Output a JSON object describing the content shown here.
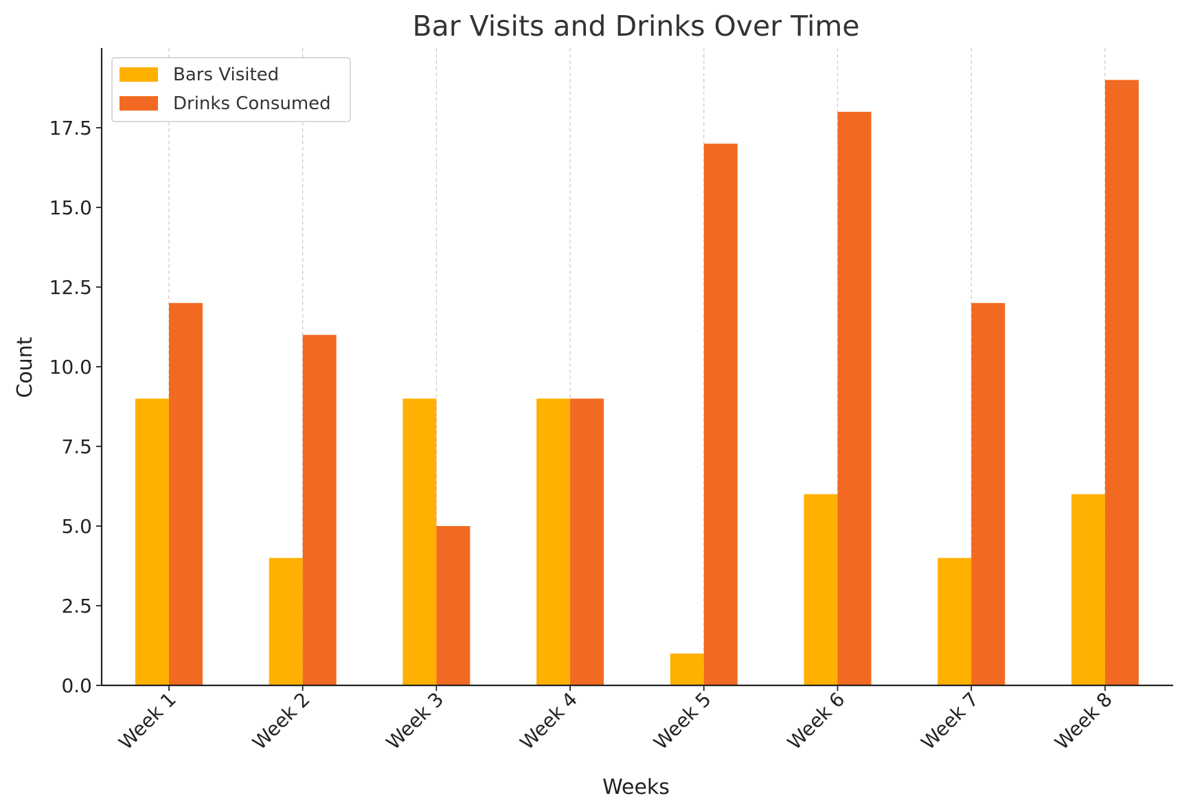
{
  "chart_data": {
    "type": "bar",
    "title": "Bar Visits and Drinks Over Time",
    "xlabel": "Weeks",
    "ylabel": "Count",
    "categories": [
      "Week 1",
      "Week 2",
      "Week 3",
      "Week 4",
      "Week 5",
      "Week 6",
      "Week 7",
      "Week 8"
    ],
    "series": [
      {
        "name": "Bars Visited",
        "color": "#FFB000",
        "values": [
          9,
          4,
          9,
          9,
          1,
          6,
          4,
          6
        ]
      },
      {
        "name": "Drinks Consumed",
        "color": "#F26A21",
        "values": [
          12,
          11,
          5,
          9,
          17,
          18,
          12,
          19
        ]
      }
    ],
    "ylim": [
      0,
      20
    ],
    "yticks": [
      "0.0",
      "2.5",
      "5.0",
      "7.5",
      "10.0",
      "12.5",
      "15.0",
      "17.5"
    ],
    "grid": "vertical dashed",
    "legend_position": "top-left"
  }
}
